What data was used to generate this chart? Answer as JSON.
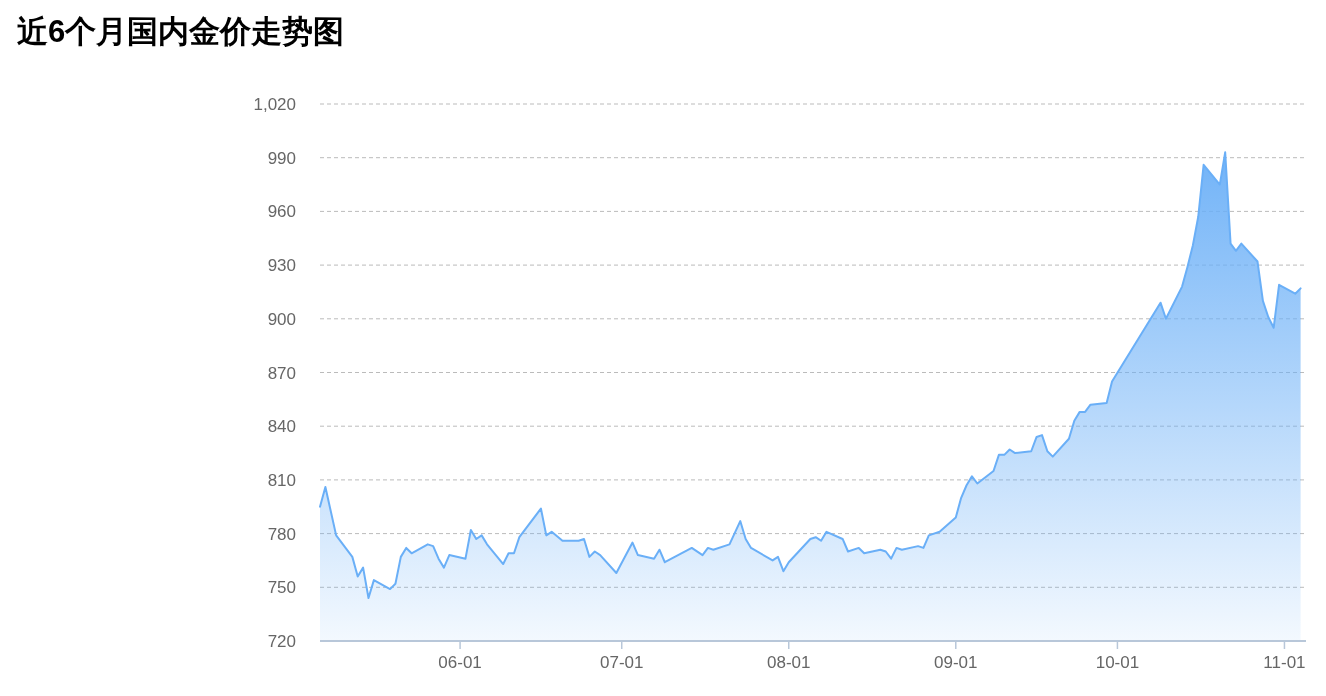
{
  "chart_data": {
    "type": "area",
    "title": "近6个月国内金价走势图",
    "x": [
      "--05-06",
      "--05-07",
      "--05-09",
      "--05-12",
      "--05-13",
      "--05-14",
      "--05-15",
      "--05-16",
      "--05-19",
      "--05-20",
      "--05-21",
      "--05-22",
      "--05-23",
      "--05-26",
      "--05-27",
      "--05-28",
      "--05-29",
      "--05-30",
      "--06-02",
      "--06-03",
      "--06-04",
      "--06-05",
      "--06-06",
      "--06-09",
      "--06-10",
      "--06-11",
      "--06-12",
      "--06-16",
      "--06-17",
      "--06-18",
      "--06-20",
      "--06-23",
      "--06-24",
      "--06-25",
      "--06-26",
      "--06-27",
      "--06-30",
      "--07-03",
      "--07-04",
      "--07-07",
      "--07-08",
      "--07-09",
      "--07-14",
      "--07-16",
      "--07-17",
      "--07-18",
      "--07-21",
      "--07-23",
      "--07-24",
      "--07-25",
      "--07-29",
      "--07-30",
      "--07-31",
      "--08-01",
      "--08-05",
      "--08-06",
      "--08-07",
      "--08-08",
      "--08-11",
      "--08-12",
      "--08-14",
      "--08-15",
      "--08-18",
      "--08-19",
      "--08-20",
      "--08-21",
      "--08-22",
      "--08-25",
      "--08-26",
      "--08-27",
      "--08-29",
      "--09-01",
      "--09-02",
      "--09-03",
      "--09-04",
      "--09-05",
      "--09-08",
      "--09-09",
      "--09-10",
      "--09-11",
      "--09-12",
      "--09-15",
      "--09-16",
      "--09-17",
      "--09-18",
      "--09-19",
      "--09-22",
      "--09-23",
      "--09-24",
      "--09-25",
      "--09-26",
      "--09-29",
      "--09-30",
      "--10-09",
      "--10-10",
      "--10-13",
      "--10-14",
      "--10-15",
      "--10-16",
      "--10-17",
      "--10-20",
      "--10-21",
      "--10-22",
      "--10-23",
      "--10-24",
      "--10-27",
      "--10-28",
      "--10-29",
      "--10-30",
      "--10-31",
      "--11-03",
      "--11-04"
    ],
    "series": [
      {
        "color": "#6aaff7",
        "values": [
          795,
          806,
          779,
          767,
          756,
          761,
          744,
          754,
          749,
          752,
          767,
          772,
          769,
          774,
          773,
          766,
          761,
          768,
          766,
          782,
          777,
          779,
          774,
          763,
          769,
          769,
          778,
          794,
          779,
          781,
          776,
          776,
          777,
          767,
          770,
          768,
          758,
          775,
          768,
          766,
          771,
          764,
          772,
          768,
          772,
          771,
          774,
          787,
          777,
          772,
          765,
          767,
          759,
          764,
          777,
          778,
          776,
          781,
          777,
          770,
          772,
          769,
          771,
          770,
          766,
          772,
          771,
          773,
          772,
          779,
          781,
          789,
          800,
          807,
          812,
          808,
          815,
          824,
          824,
          827,
          825,
          826,
          834,
          835,
          826,
          823,
          833,
          843,
          848,
          848,
          852,
          853,
          865,
          909,
          900,
          918,
          929,
          941,
          957,
          986,
          975,
          993,
          942,
          938,
          942,
          932,
          910,
          901,
          895,
          919,
          914,
          917
        ]
      }
    ],
    "xlim": [
      "--05-06",
      "--11-05"
    ],
    "xticks": [
      {
        "value": "--06-01",
        "label": "06-01"
      },
      {
        "value": "--07-01",
        "label": "07-01"
      },
      {
        "value": "--08-01",
        "label": "08-01"
      },
      {
        "value": "--09-01",
        "label": "09-01"
      },
      {
        "value": "--10-01",
        "label": "10-01"
      },
      {
        "value": "--11-01",
        "label": "11-01"
      }
    ],
    "ylim": [
      720,
      1020
    ],
    "yticks": [
      720,
      750,
      780,
      810,
      840,
      870,
      900,
      930,
      960,
      990,
      {
        "value": 1020,
        "label": "1,020"
      }
    ],
    "grid": "y",
    "line_style": "solid",
    "marker": "none"
  }
}
